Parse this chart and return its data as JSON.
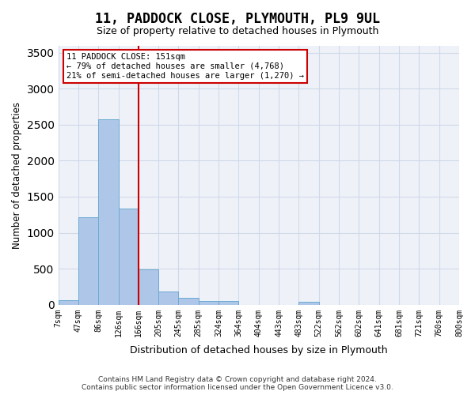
{
  "title": "11, PADDOCK CLOSE, PLYMOUTH, PL9 9UL",
  "subtitle": "Size of property relative to detached houses in Plymouth",
  "xlabel": "Distribution of detached houses by size in Plymouth",
  "ylabel": "Number of detached properties",
  "footer_line1": "Contains HM Land Registry data © Crown copyright and database right 2024.",
  "footer_line2": "Contains public sector information licensed under the Open Government Licence v3.0.",
  "bin_labels": [
    "7sqm",
    "47sqm",
    "86sqm",
    "126sqm",
    "166sqm",
    "205sqm",
    "245sqm",
    "285sqm",
    "324sqm",
    "364sqm",
    "404sqm",
    "443sqm",
    "483sqm",
    "522sqm",
    "562sqm",
    "602sqm",
    "641sqm",
    "681sqm",
    "721sqm",
    "760sqm",
    "800sqm"
  ],
  "bar_heights": [
    60,
    1220,
    2580,
    1330,
    490,
    185,
    100,
    50,
    50,
    0,
    0,
    0,
    45,
    0,
    0,
    0,
    0,
    0,
    0,
    0
  ],
  "bar_color": "#aec6e8",
  "bar_edge_color": "#6aaad4",
  "grid_color": "#d0d8e8",
  "background_color": "#eef2f8",
  "property_line_color": "#cc0000",
  "annotation_text": "11 PADDOCK CLOSE: 151sqm\n← 79% of detached houses are smaller (4,768)\n21% of semi-detached houses are larger (1,270) →",
  "annotation_box_color": "#cc0000",
  "ylim": [
    0,
    3600
  ],
  "yticks": [
    0,
    500,
    1000,
    1500,
    2000,
    2500,
    3000,
    3500
  ]
}
